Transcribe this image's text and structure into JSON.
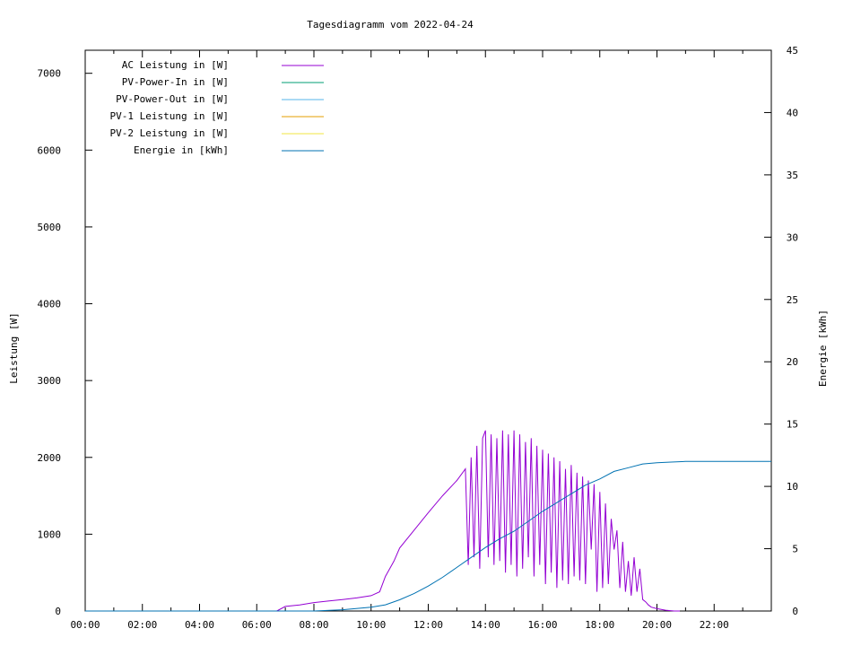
{
  "chart_data": {
    "type": "line",
    "title": "Tagesdiagramm vom 2022-04-24",
    "ylabel": "Leistung [W]",
    "y2label": "Energie [kWh]",
    "xlim": [
      0,
      24
    ],
    "ylim": [
      0,
      7300
    ],
    "y2lim": [
      0,
      45
    ],
    "x_ticks": [
      {
        "v": 0,
        "label": "00:00"
      },
      {
        "v": 2,
        "label": "02:00"
      },
      {
        "v": 4,
        "label": "04:00"
      },
      {
        "v": 6,
        "label": "06:00"
      },
      {
        "v": 8,
        "label": "08:00"
      },
      {
        "v": 10,
        "label": "10:00"
      },
      {
        "v": 12,
        "label": "12:00"
      },
      {
        "v": 14,
        "label": "14:00"
      },
      {
        "v": 16,
        "label": "16:00"
      },
      {
        "v": 18,
        "label": "18:00"
      },
      {
        "v": 20,
        "label": "20:00"
      },
      {
        "v": 22,
        "label": "22:00"
      }
    ],
    "y_ticks": [
      0,
      1000,
      2000,
      3000,
      4000,
      5000,
      6000,
      7000
    ],
    "y2_ticks": [
      0,
      5,
      10,
      15,
      20,
      25,
      30,
      35,
      40,
      45
    ],
    "grid": false,
    "legend_position": "top-left",
    "series": [
      {
        "name": "AC Leistung in [W]",
        "color": "#9400d3",
        "axis": "left",
        "x": [
          6.7,
          7.0,
          7.5,
          8.0,
          8.5,
          9.0,
          9.5,
          10.0,
          10.3,
          10.5,
          10.8,
          11.0,
          11.5,
          12.0,
          12.5,
          13.0,
          13.3,
          13.4,
          13.5,
          13.6,
          13.7,
          13.8,
          13.9,
          14.0,
          14.1,
          14.2,
          14.3,
          14.4,
          14.5,
          14.6,
          14.7,
          14.8,
          14.9,
          15.0,
          15.1,
          15.2,
          15.3,
          15.4,
          15.5,
          15.6,
          15.7,
          15.8,
          15.9,
          16.0,
          16.1,
          16.2,
          16.3,
          16.4,
          16.5,
          16.6,
          16.7,
          16.8,
          16.9,
          17.0,
          17.1,
          17.2,
          17.3,
          17.4,
          17.5,
          17.6,
          17.7,
          17.8,
          17.9,
          18.0,
          18.1,
          18.2,
          18.3,
          18.4,
          18.5,
          18.6,
          18.7,
          18.8,
          18.9,
          19.0,
          19.1,
          19.2,
          19.3,
          19.4,
          19.5,
          19.6,
          19.7,
          19.8,
          20.0,
          20.3,
          20.6,
          20.8
        ],
        "values": [
          0,
          60,
          80,
          110,
          130,
          150,
          170,
          200,
          250,
          450,
          650,
          820,
          1050,
          1280,
          1500,
          1700,
          1850,
          600,
          2000,
          700,
          2150,
          550,
          2250,
          2350,
          700,
          2300,
          600,
          2250,
          650,
          2350,
          500,
          2300,
          600,
          2350,
          450,
          2300,
          550,
          2200,
          700,
          2250,
          450,
          2150,
          600,
          2100,
          350,
          2050,
          500,
          2000,
          300,
          1950,
          400,
          1850,
          350,
          1900,
          450,
          1800,
          400,
          1750,
          350,
          1700,
          800,
          1650,
          250,
          1550,
          300,
          1400,
          350,
          1200,
          800,
          1050,
          300,
          900,
          250,
          650,
          200,
          700,
          250,
          550,
          150,
          120,
          80,
          50,
          30,
          10,
          0,
          0
        ]
      },
      {
        "name": "PV-Power-In in [W]",
        "color": "#009e73",
        "axis": "left",
        "x": [],
        "values": []
      },
      {
        "name": "PV-Power-Out in [W]",
        "color": "#56b4e9",
        "axis": "left",
        "x": [],
        "values": []
      },
      {
        "name": "PV-1 Leistung in [W]",
        "color": "#e69f00",
        "axis": "left",
        "x": [],
        "values": []
      },
      {
        "name": "PV-2 Leistung in [W]",
        "color": "#f0e442",
        "axis": "left",
        "x": [],
        "values": []
      },
      {
        "name": "Energie in [kWh]",
        "color": "#0072b2",
        "axis": "right",
        "x": [
          0,
          8.0,
          9.0,
          10.0,
          10.5,
          11.0,
          11.5,
          12.0,
          12.5,
          13.0,
          13.5,
          14.0,
          14.5,
          15.0,
          15.5,
          16.0,
          16.5,
          17.0,
          17.5,
          18.0,
          18.5,
          19.0,
          19.5,
          20.0,
          20.5,
          21.0,
          24.0
        ],
        "values": [
          0,
          0,
          0.1,
          0.3,
          0.5,
          0.9,
          1.4,
          2.0,
          2.7,
          3.5,
          4.3,
          5.1,
          5.8,
          6.4,
          7.2,
          8.0,
          8.7,
          9.4,
          10.1,
          10.6,
          11.2,
          11.5,
          11.8,
          11.9,
          11.95,
          12.0,
          12.0
        ]
      }
    ]
  }
}
